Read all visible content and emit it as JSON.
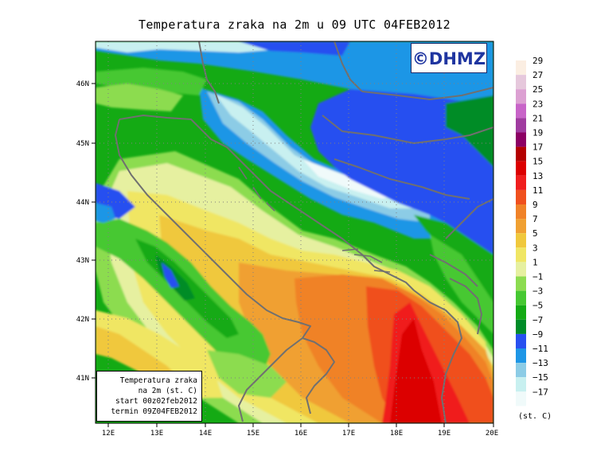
{
  "title": "Temperatura zraka na 2m u 09 UTC 04FEB2012",
  "logo": "©DHMZ",
  "info_box": {
    "line1": "Temperatura zraka",
    "line2": "na 2m (st. C)",
    "line3": "start 00z02feb2012",
    "line4": "termin 09Z04FEB2012"
  },
  "latitude_labels": [
    "46N",
    "45N",
    "44N",
    "43N",
    "42N",
    "41N"
  ],
  "longitude_labels": [
    "12E",
    "13E",
    "14E",
    "15E",
    "16E",
    "17E",
    "18E",
    "19E",
    "20E"
  ],
  "legend": {
    "units": "(st. C)",
    "levels": [
      "29",
      "27",
      "25",
      "23",
      "21",
      "19",
      "17",
      "15",
      "13",
      "11",
      "9",
      "7",
      "5",
      "3",
      "1",
      "−1",
      "−3",
      "−5",
      "−7",
      "−9",
      "−11",
      "−13",
      "−15",
      "−17"
    ],
    "colors": [
      "#fbeee2",
      "#e6c8dc",
      "#dca0d2",
      "#c864c8",
      "#a03ca0",
      "#8c0064",
      "#b40000",
      "#dc0000",
      "#f01e1e",
      "#f0501e",
      "#f08228",
      "#f0a032",
      "#f0c83c",
      "#f0e664",
      "#e6f0a0",
      "#8cdc50",
      "#46c832",
      "#14aa14",
      "#008c28",
      "#2850f0",
      "#1e96e6",
      "#8ccce6",
      "#c8f0f0",
      "#f0fafa"
    ]
  }
}
